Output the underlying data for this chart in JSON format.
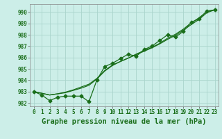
{
  "title": "Graphe pression niveau de la mer (hPa)",
  "background_color": "#cceee8",
  "grid_color": "#aad4cc",
  "line_color": "#1a6e1a",
  "x_values": [
    0,
    1,
    2,
    3,
    4,
    5,
    6,
    7,
    8,
    9,
    10,
    11,
    12,
    13,
    14,
    15,
    16,
    17,
    18,
    19,
    20,
    21,
    22,
    23
  ],
  "y_main": [
    983.0,
    982.7,
    982.2,
    982.5,
    982.6,
    982.6,
    982.6,
    982.1,
    984.0,
    985.2,
    985.5,
    985.9,
    986.3,
    986.1,
    986.7,
    987.0,
    987.5,
    988.0,
    987.8,
    988.3,
    989.1,
    989.4,
    990.1,
    990.2
  ],
  "y_smooth1": [
    983.0,
    982.85,
    982.7,
    982.8,
    982.9,
    983.1,
    983.3,
    983.55,
    984.1,
    984.8,
    985.3,
    985.65,
    985.95,
    986.25,
    986.55,
    986.85,
    987.2,
    987.6,
    987.95,
    988.4,
    988.9,
    989.35,
    989.95,
    990.2
  ],
  "y_smooth2": [
    983.0,
    982.85,
    982.7,
    982.8,
    982.95,
    983.15,
    983.4,
    983.65,
    984.15,
    984.85,
    985.35,
    985.65,
    985.95,
    986.3,
    986.6,
    986.9,
    987.25,
    987.7,
    988.05,
    988.5,
    989.05,
    989.5,
    990.05,
    990.2
  ],
  "ylim": [
    981.7,
    990.7
  ],
  "xlim": [
    -0.5,
    23.5
  ],
  "yticks": [
    982,
    983,
    984,
    985,
    986,
    987,
    988,
    989,
    990
  ],
  "xticks": [
    0,
    1,
    2,
    3,
    4,
    5,
    6,
    7,
    8,
    9,
    10,
    11,
    12,
    13,
    14,
    15,
    16,
    17,
    18,
    19,
    20,
    21,
    22,
    23
  ],
  "marker": "D",
  "marker_size": 2.5,
  "line_width": 0.9,
  "title_fontsize": 7.5,
  "tick_fontsize": 5.5
}
